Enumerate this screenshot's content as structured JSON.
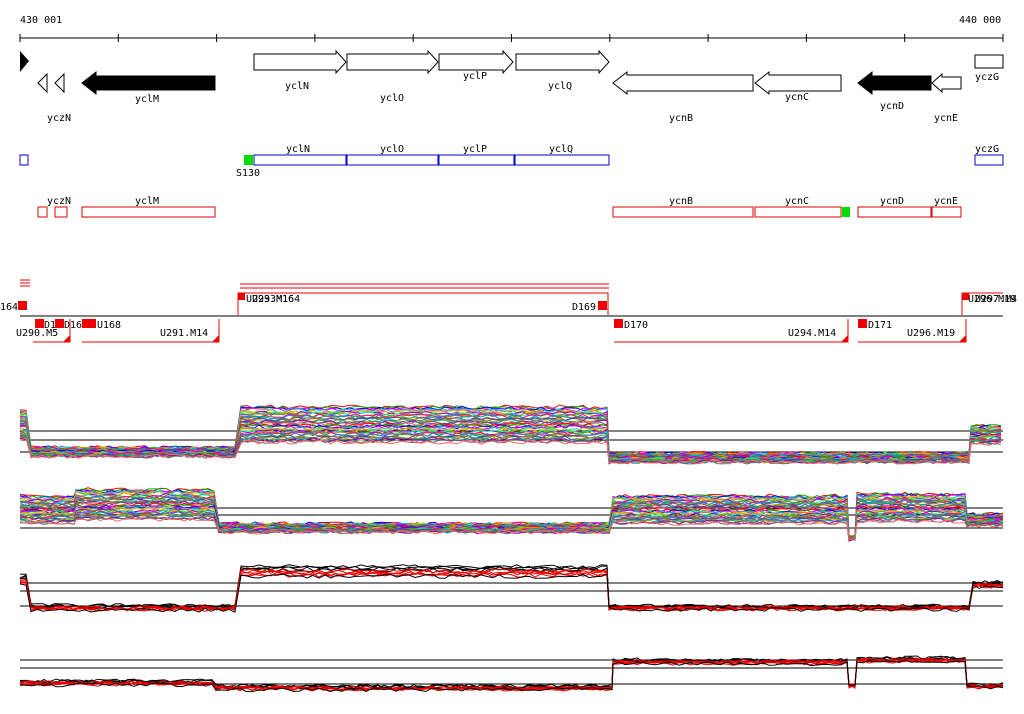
{
  "coordinate_axis": {
    "start_label": "430 001",
    "end_label": "440 000"
  },
  "genes": [
    {
      "label": "yczN",
      "strand": "-",
      "filled": false
    },
    {
      "label": "yclM",
      "strand": "-",
      "filled": true
    },
    {
      "label": "yclN",
      "strand": "+",
      "filled": false
    },
    {
      "label": "yclO",
      "strand": "+",
      "filled": false
    },
    {
      "label": "yclP",
      "strand": "+",
      "filled": false
    },
    {
      "label": "yclQ",
      "strand": "+",
      "filled": false
    },
    {
      "label": "ycnB",
      "strand": "-",
      "filled": false
    },
    {
      "label": "ycnC",
      "strand": "-",
      "filled": false
    },
    {
      "label": "ycnD",
      "strand": "-",
      "filled": true
    },
    {
      "label": "ycnE",
      "strand": "-",
      "filled": false
    },
    {
      "label": "yczG",
      "strand": "+",
      "filled": false
    }
  ],
  "plus_strand_transcripts": {
    "color": "#0000cc",
    "labels": [
      "yclN",
      "yclO",
      "yclP",
      "yclQ",
      "yczG"
    ],
    "site_label": "S130",
    "site_color": "#00dd00"
  },
  "minus_strand_transcripts": {
    "color": "#dd0000",
    "labels": [
      "yczN",
      "yclM",
      "ycnB",
      "ycnC",
      "ycnD",
      "ycnE"
    ],
    "site_color": "#00dd00"
  },
  "segment_labels": [
    "164",
    "U293.M16",
    "U293M164",
    "D169",
    "U296.M19",
    "U297.M4",
    "D16",
    "D16",
    "U168",
    "U290.M5",
    "U291.M14",
    "D170",
    "U294.M14",
    "D171",
    "U296.M19"
  ],
  "colors": {
    "feature_red": "#ee0000",
    "transcript_blue": "#0000cc",
    "site_green": "#00dd00",
    "axis": "#000000"
  }
}
